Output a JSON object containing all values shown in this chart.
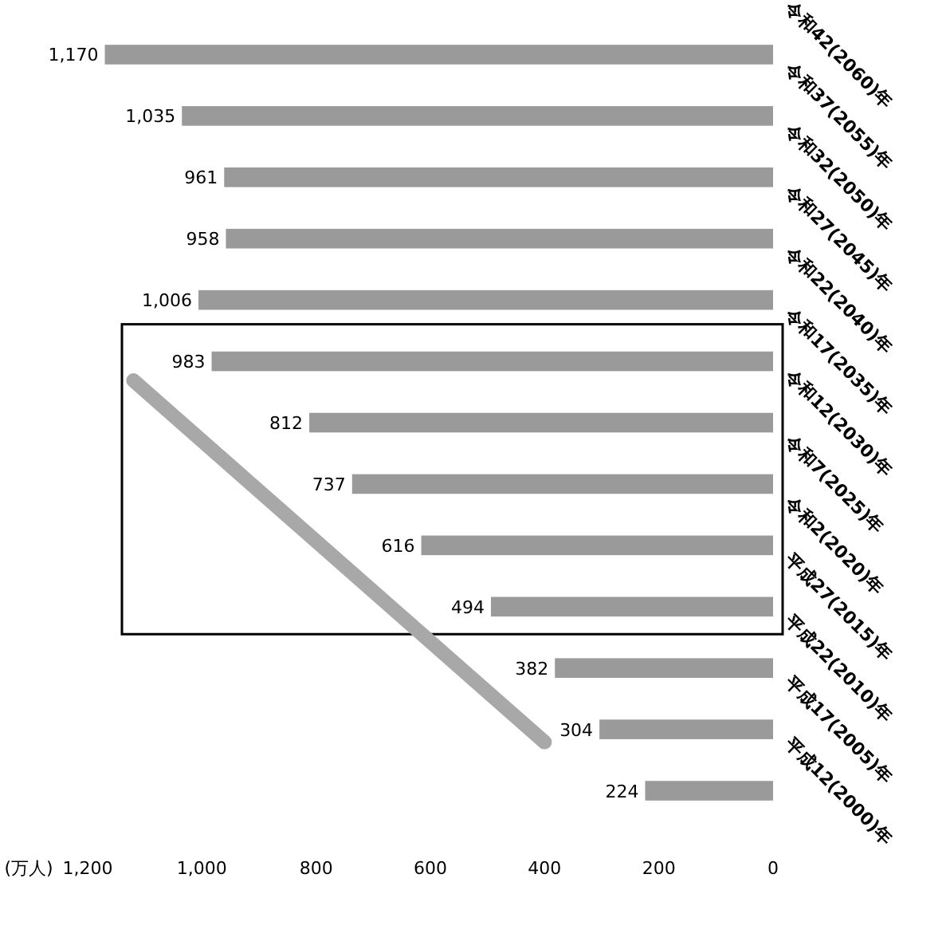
{
  "chart_data": {
    "type": "bar",
    "orientation": "horizontal",
    "categories": [
      "令和42(2060)年",
      "令和37(2055)年",
      "令和32(2050)年",
      "令和27(2045)年",
      "令和22(2040)年",
      "令和17(2035)年",
      "令和12(2030)年",
      "令和7(2025)年",
      "令和2(2020)年",
      "平成27(2015)年",
      "平成22(2010)年",
      "平成17(2005)年",
      "平成12(2000)年"
    ],
    "values": [
      1170,
      1035,
      961,
      958,
      1006,
      983,
      812,
      737,
      616,
      494,
      382,
      304,
      224
    ],
    "value_labels": [
      "1,170",
      "1,035",
      "961",
      "958",
      "1,006",
      "983",
      "812",
      "737",
      "616",
      "494",
      "382",
      "304",
      "224"
    ],
    "color": "#9a9a9a",
    "xlim": [
      1200,
      0
    ],
    "xticks": [
      {
        "value": 1200,
        "label": "1,200"
      },
      {
        "value": 1000,
        "label": "1,000"
      },
      800,
      600,
      400,
      200,
      0
    ],
    "xlabel": "(万人)"
  }
}
